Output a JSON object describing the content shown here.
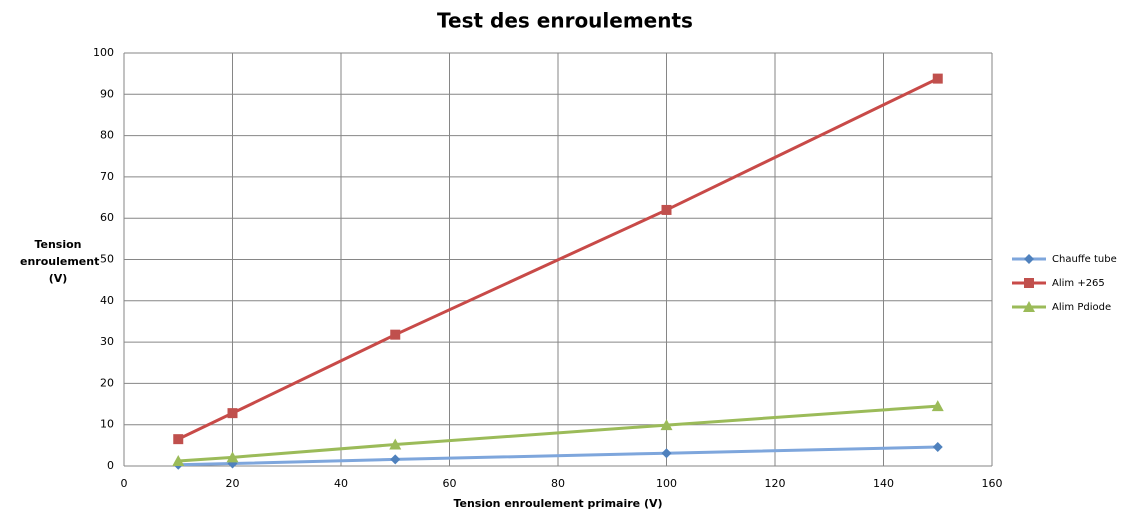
{
  "chart_data": {
    "type": "line",
    "title": "Test des enroulements",
    "x_label": "Tension enroulement primaire (V)",
    "y_label": "Tension enroulement (V)",
    "x": [
      10,
      20,
      50,
      100,
      150
    ],
    "series": [
      {
        "name": "Chauffe tube",
        "color": "#4f81bd",
        "line_color": "#7ea6dc",
        "marker": "diamond",
        "values": [
          0.3,
          0.6,
          1.6,
          3.1,
          4.6
        ]
      },
      {
        "name": "Alim +265",
        "color": "#c0504d",
        "line_color": "#c84a48",
        "marker": "square",
        "values": [
          6.5,
          12.8,
          31.8,
          62,
          93.8
        ]
      },
      {
        "name": "Alim Pdiode",
        "color": "#9bbb59",
        "line_color": "#9bbb59",
        "marker": "triangle",
        "values": [
          1.2,
          2.1,
          5.2,
          9.9,
          14.5
        ]
      }
    ],
    "xlim": [
      0,
      160
    ],
    "xticks": [
      0,
      20,
      40,
      60,
      80,
      100,
      120,
      140,
      160
    ],
    "ylim": [
      0,
      100
    ],
    "yticks": [
      0,
      10,
      20,
      30,
      40,
      50,
      60,
      70,
      80,
      90,
      100
    ],
    "grid": true,
    "legend": "right"
  }
}
